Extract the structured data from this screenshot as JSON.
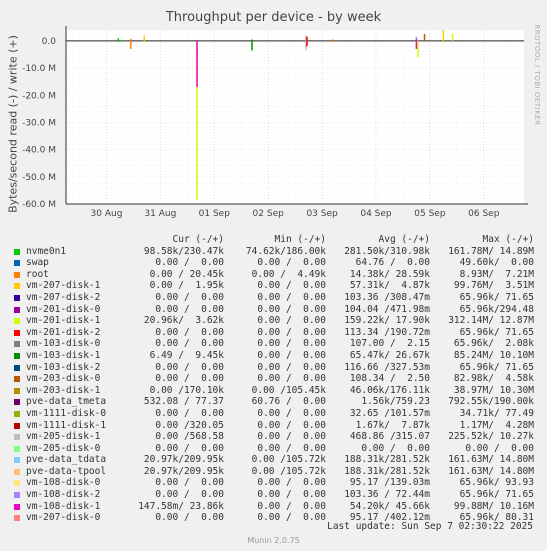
{
  "chart_data": {
    "type": "line",
    "title": "Throughput per device - by week",
    "ylabel": "Bytes/second read (-) / write (+)",
    "ylim": [
      -60000000,
      4000000
    ],
    "y_ticks": [
      {
        "value": 0,
        "label": "0.0"
      },
      {
        "value": -10000000,
        "label": "-10.0 M"
      },
      {
        "value": -20000000,
        "label": "-20.0 M"
      },
      {
        "value": -30000000,
        "label": "-30.0 M"
      },
      {
        "value": -40000000,
        "label": "-40.0 M"
      },
      {
        "value": -50000000,
        "label": "-50.0 M"
      },
      {
        "value": -60000000,
        "label": "-60.0 M"
      }
    ],
    "x_ticks": [
      "30 Aug",
      "31 Aug",
      "01 Sep",
      "02 Sep",
      "03 Sep",
      "04 Sep",
      "05 Sep",
      "06 Sep"
    ],
    "grid": true,
    "spikes": [
      {
        "series": "nvme0n1",
        "x_day": 0.72,
        "values": [
          1000000,
          -400000
        ]
      },
      {
        "series": "root",
        "x_day": 0.95,
        "values": [
          800000,
          -3000000
        ]
      },
      {
        "series": "vm-207-disk-1",
        "x_day": 1.2,
        "values": [
          2000000,
          -500000
        ]
      },
      {
        "series": "vm-201-disk-1",
        "x_day": 2.18,
        "values": [
          -58500000
        ]
      },
      {
        "series": "vm-108-disk-1",
        "x_day": 2.18,
        "values": [
          -17000000
        ]
      },
      {
        "series": "pve-data_tmeta",
        "x_day": 2.18,
        "values": [
          200000
        ]
      },
      {
        "series": "vm-103-disk-1",
        "x_day": 3.2,
        "values": [
          500000,
          -3500000
        ]
      },
      {
        "series": "vm-205-disk-1",
        "x_day": 4.2,
        "values": [
          2000000,
          -3500000
        ]
      },
      {
        "series": "vm-201-disk-2",
        "x_day": 4.22,
        "values": [
          1500000,
          -2000000
        ]
      },
      {
        "series": "root",
        "x_day": 4.7,
        "values": [
          500000,
          -500000
        ]
      },
      {
        "series": "vm-108-disk-2",
        "x_day": 6.25,
        "values": [
          1500000,
          -500000
        ]
      },
      {
        "series": "vm-108-disk-1",
        "x_day": 6.25,
        "values": [
          500000,
          -3000000
        ]
      },
      {
        "series": "vm-201-disk-1",
        "x_day": 6.28,
        "values": [
          -6000000
        ]
      },
      {
        "series": "vm-203-disk-0",
        "x_day": 6.4,
        "values": [
          2500000
        ]
      },
      {
        "series": "vm-207-disk-1",
        "x_day": 6.75,
        "values": [
          4000000,
          -500000
        ]
      },
      {
        "series": "vm-201-disk-1",
        "x_day": 6.92,
        "values": [
          2500000
        ]
      }
    ]
  },
  "legend": {
    "headers": {
      "cur": "Cur (-/+)",
      "min": "Min (-/+)",
      "avg": "Avg (-/+)",
      "max": "Max (-/+)"
    },
    "rows": [
      {
        "name": "nvme0n1",
        "color": "#00cc00",
        "cur": "98.58k/230.47k",
        "min": "74.62k/186.00k",
        "avg": "281.50k/310.98k",
        "max": "161.78M/ 14.89M"
      },
      {
        "name": "swap",
        "color": "#0066b3",
        "cur": "0.00 /  0.00",
        "min": "0.00 /  0.00",
        "avg": "64.76 /  0.00",
        "max": "49.60k/  0.00"
      },
      {
        "name": "root",
        "color": "#ff8000",
        "cur": "0.00 / 20.45k",
        "min": "0.00 /  4.49k",
        "avg": "14.38k/ 28.59k",
        "max": "8.93M/  7.21M"
      },
      {
        "name": "vm-207-disk-1",
        "color": "#ffcc00",
        "cur": "0.00 /  1.95k",
        "min": "0.00 /  0.00",
        "avg": "57.31k/  4.87k",
        "max": "99.76M/  3.51M"
      },
      {
        "name": "vm-207-disk-2",
        "color": "#330099",
        "cur": "0.00 /  0.00",
        "min": "0.00 /  0.00",
        "avg": "103.36 /308.47m",
        "max": "65.96k/ 71.65"
      },
      {
        "name": "vm-201-disk-0",
        "color": "#990099",
        "cur": "0.00 /  0.00",
        "min": "0.00 /  0.00",
        "avg": "104.04 /471.98m",
        "max": "65.96k/294.48"
      },
      {
        "name": "vm-201-disk-1",
        "color": "#ccff00",
        "cur": "20.96k/  3.62k",
        "min": "0.00 /  0.00",
        "avg": "159.22k/ 17.90k",
        "max": "312.14M/ 12.87M"
      },
      {
        "name": "vm-201-disk-2",
        "color": "#ff0000",
        "cur": "0.00 /  0.00",
        "min": "0.00 /  0.00",
        "avg": "113.34 /190.72m",
        "max": "65.96k/ 71.65"
      },
      {
        "name": "vm-103-disk-0",
        "color": "#808080",
        "cur": "0.00 /  0.00",
        "min": "0.00 /  0.00",
        "avg": "107.00 /  2.15",
        "max": "65.96k/  2.08k"
      },
      {
        "name": "vm-103-disk-1",
        "color": "#008f00",
        "cur": "6.49 /  9.45k",
        "min": "0.00 /  0.00",
        "avg": "65.47k/ 26.67k",
        "max": "85.24M/ 10.10M"
      },
      {
        "name": "vm-103-disk-2",
        "color": "#00487d",
        "cur": "0.00 /  0.00",
        "min": "0.00 /  0.00",
        "avg": "116.66 /327.53m",
        "max": "65.96k/ 71.65"
      },
      {
        "name": "vm-203-disk-0",
        "color": "#b35a00",
        "cur": "0.00 /  0.00",
        "min": "0.00 /  0.00",
        "avg": "108.34 /  2.50",
        "max": "82.98k/  4.58k"
      },
      {
        "name": "vm-203-disk-1",
        "color": "#b38f00",
        "cur": "0.00 /170.10k",
        "min": "0.00 /105.45k",
        "avg": "46.06k/176.11k",
        "max": "38.97M/ 10.30M"
      },
      {
        "name": "pve-data_tmeta",
        "color": "#6b006b",
        "cur": "532.08 / 77.37",
        "min": "60.76 /  0.00",
        "avg": "1.56k/759.23",
        "max": "792.55k/190.00k"
      },
      {
        "name": "vm-1111-disk-0",
        "color": "#8fb300",
        "cur": "0.00 /  0.00",
        "min": "0.00 /  0.00",
        "avg": "32.65 /101.57m",
        "max": "34.71k/ 77.49"
      },
      {
        "name": "vm-1111-disk-1",
        "color": "#b30000",
        "cur": "0.00 /320.05",
        "min": "0.00 /  0.00",
        "avg": "1.67k/  7.87k",
        "max": "1.17M/  4.28M"
      },
      {
        "name": "vm-205-disk-1",
        "color": "#bebebe",
        "cur": "0.00 /568.58",
        "min": "0.00 /  0.00",
        "avg": "468.86 /315.07",
        "max": "225.52k/ 10.27k"
      },
      {
        "name": "vm-205-disk-0",
        "color": "#80ff80",
        "cur": "0.00 /  0.00",
        "min": "0.00 /  0.00",
        "avg": "0.00 /  0.00",
        "max": "0.00 /  0.00"
      },
      {
        "name": "pve-data_tdata",
        "color": "#80c9ff",
        "cur": "20.97k/209.95k",
        "min": "0.00 /105.72k",
        "avg": "188.31k/281.52k",
        "max": "161.63M/ 14.80M"
      },
      {
        "name": "pve-data-tpool",
        "color": "#ffc080",
        "cur": "20.97k/209.95k",
        "min": "0.00 /105.72k",
        "avg": "188.31k/281.52k",
        "max": "161.63M/ 14.80M"
      },
      {
        "name": "vm-108-disk-0",
        "color": "#ffe680",
        "cur": "0.00 /  0.00",
        "min": "0.00 /  0.00",
        "avg": "95.17 /139.03m",
        "max": "65.96k/ 93.93"
      },
      {
        "name": "vm-108-disk-2",
        "color": "#aa80ff",
        "cur": "0.00 /  0.00",
        "min": "0.00 /  0.00",
        "avg": "103.36 / 72.44m",
        "max": "65.96k/ 71.65"
      },
      {
        "name": "vm-108-disk-1",
        "color": "#ee00cc",
        "cur": "147.58m/ 23.86k",
        "min": "0.00 /  0.00",
        "avg": "54.20k/ 45.66k",
        "max": "99.88M/ 10.16M"
      },
      {
        "name": "vm-207-disk-0",
        "color": "#ff8080",
        "cur": "0.00 /  0.00",
        "min": "0.00 /  0.00",
        "avg": "95.17 /402.12m",
        "max": "65.96k/ 80.31"
      }
    ]
  },
  "last_update": "Last update: Sun Sep  7 02:30:22 2025",
  "footer": "Munin 2.0.75",
  "watermark": "RRDTOOL / TOBI OETIKER"
}
